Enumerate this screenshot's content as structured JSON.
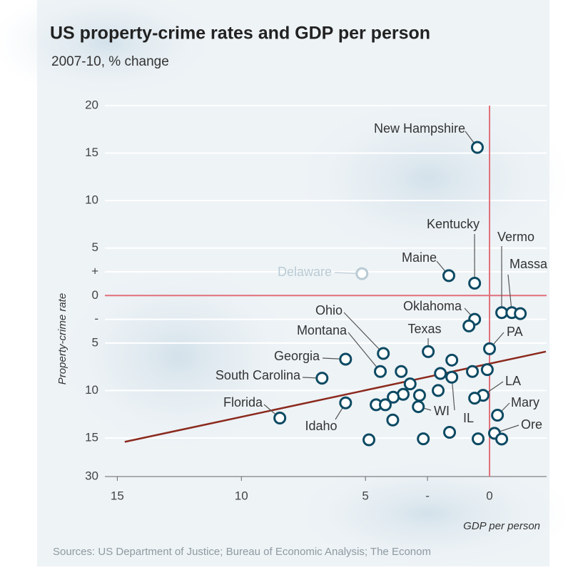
{
  "chart_data": {
    "type": "scatter",
    "title": "US property-crime rates and GDP per person",
    "subtitle": "2007-10, % change",
    "x_label": "GDP per person",
    "y_label": "Property-crime rate",
    "source": "Sources: US Department of Justice; Bureau of Economic Analysis; The Econom",
    "xlim": [
      -15.5,
      2.3
    ],
    "xticks": [
      {
        "value": -15,
        "label": "15"
      },
      {
        "value": -10,
        "label": "10"
      },
      {
        "value": -5,
        "label": "5"
      },
      {
        "value": -2.5,
        "label": "-"
      },
      0
    ],
    "ylim": [
      -30,
      20
    ],
    "yticks": [
      20,
      15,
      10,
      5,
      {
        "value": 2.5,
        "label": "+"
      },
      0,
      {
        "value": -2.5,
        "label": "-"
      },
      {
        "value": -5,
        "label": "5"
      },
      {
        "value": -10,
        "label": "10"
      },
      {
        "value": -15,
        "label": "15"
      },
      {
        "value": -30,
        "label": "30"
      }
    ],
    "y_axis_break": true,
    "grid": true,
    "point_color": "#0d4a63",
    "muted_color": "#b9cbd4",
    "muted": [
      3
    ],
    "zero_line_color": "#e0707a",
    "trend_color": "#8b2a1e",
    "series": [
      {
        "x": [
          -0.49,
          -0.6,
          -1.64,
          -5.14,
          0.49,
          0.9,
          1.24,
          -0.6,
          -0.83,
          -4.28,
          -4.4,
          -5.8,
          -6.75,
          -8.45,
          -5.8,
          -2.47,
          0,
          -2.87,
          -1.52,
          -0.26,
          0.32,
          0.2,
          -1.52,
          -3.56,
          -3.2,
          -1.98,
          -0.69,
          -0.09,
          -2.07,
          -2.82,
          -3.48,
          -3.88,
          -4.57,
          -4.2,
          -3.9,
          -0.6,
          0.49,
          -0.46,
          -1.61,
          -2.67,
          -4.86
        ],
        "y": [
          15.6,
          1.3,
          2.1,
          2.3,
          -1.8,
          -1.8,
          -1.9,
          -2.5,
          -3.2,
          -6.1,
          -8.0,
          -6.7,
          -8.7,
          -12.9,
          -11.3,
          -5.9,
          -5.6,
          -11.7,
          -8.6,
          -10.5,
          -12.6,
          -14.5,
          -6.8,
          -8.0,
          -9.3,
          -8.2,
          -8.0,
          -7.8,
          -10.0,
          -10.5,
          -10.4,
          -10.7,
          -11.5,
          -11.5,
          -13.1,
          -10.8,
          -15.4,
          -15.3,
          -14.4,
          -15.3,
          -15.7
        ],
        "labels": [
          "New Hampshire",
          "Kentucky",
          "Maine",
          "Delaware",
          "Vermo",
          "Massa",
          null,
          "Oklahoma",
          null,
          "Ohio",
          "Montana",
          "Georgia",
          "South Carolina",
          "Florida",
          "Idaho",
          "Texas",
          "PA",
          "WI",
          "IL",
          "LA",
          "Mary",
          "Ore",
          null,
          null,
          null,
          null,
          null,
          null,
          null,
          null,
          null,
          null,
          null,
          null,
          null,
          null,
          null,
          null,
          null,
          null,
          null
        ]
      }
    ],
    "trend_line": {
      "x": [
        -14.7,
        2.27
      ],
      "y": [
        -16.5,
        -5.9
      ]
    }
  }
}
